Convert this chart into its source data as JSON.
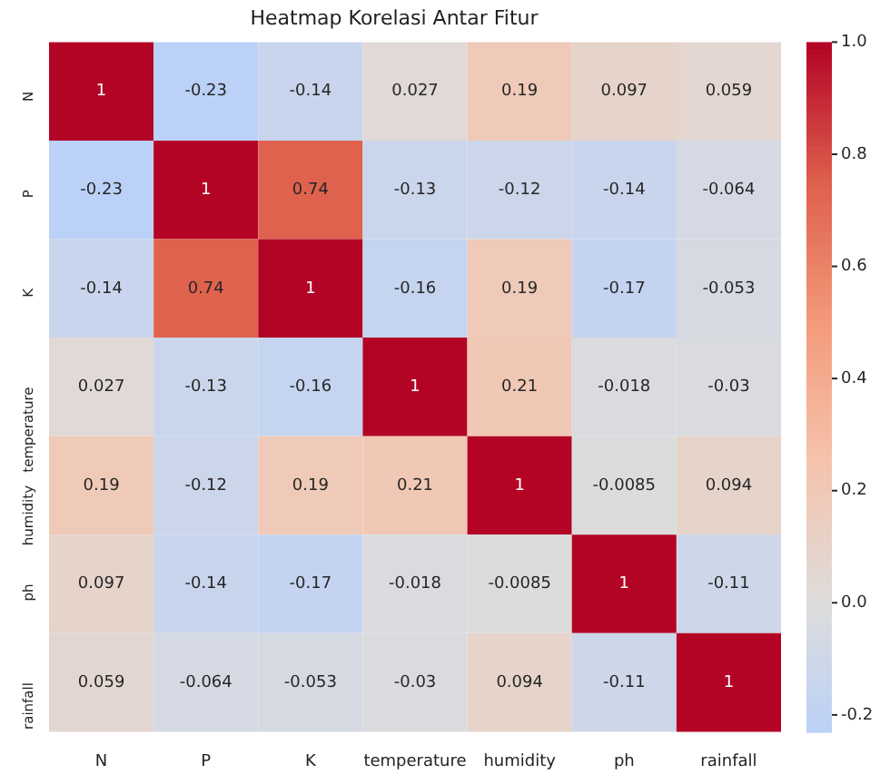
{
  "chart_data": {
    "type": "heatmap",
    "title": "Heatmap Korelasi Antar Fitur",
    "categories": [
      "N",
      "P",
      "K",
      "temperature",
      "humidity",
      "ph",
      "rainfall"
    ],
    "y_categories": [
      "N",
      "P",
      "K",
      "temperature",
      "humidity",
      "ph",
      "rainfall"
    ],
    "cells": [
      [
        1,
        -0.23,
        -0.14,
        0.027,
        0.19,
        0.097,
        0.059
      ],
      [
        -0.23,
        1,
        0.74,
        -0.13,
        -0.12,
        -0.14,
        -0.064
      ],
      [
        -0.14,
        0.74,
        1,
        -0.16,
        0.19,
        -0.17,
        -0.053
      ],
      [
        0.027,
        -0.13,
        -0.16,
        1,
        0.21,
        -0.018,
        -0.03
      ],
      [
        0.19,
        -0.12,
        0.19,
        0.21,
        1,
        -0.0085,
        0.094
      ],
      [
        0.097,
        -0.14,
        -0.17,
        -0.018,
        -0.0085,
        1,
        -0.11
      ],
      [
        0.059,
        -0.064,
        -0.053,
        -0.03,
        0.094,
        -0.11,
        1
      ]
    ],
    "clim": [
      -0.23,
      1
    ],
    "cticks": [
      {
        "value": -0.2,
        "label": "-0.2"
      },
      {
        "value": 0,
        "label": "0.0"
      },
      {
        "value": 0.2,
        "label": "0.2"
      },
      {
        "value": 0.4,
        "label": "0.4"
      },
      {
        "value": 0.6,
        "label": "0.6"
      },
      {
        "value": 0.8,
        "label": "0.8"
      },
      {
        "value": 1,
        "label": "1.0"
      }
    ],
    "data_labels": true
  }
}
